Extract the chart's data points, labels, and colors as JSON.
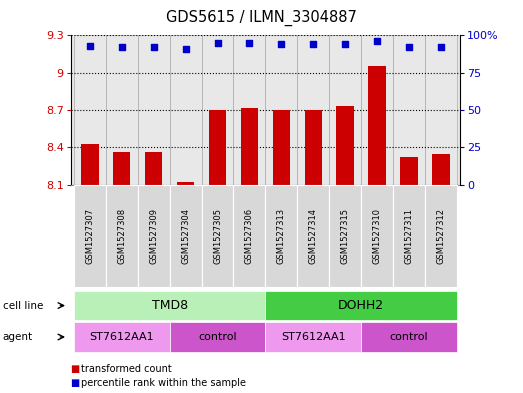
{
  "title": "GDS5615 / ILMN_3304887",
  "samples": [
    "GSM1527307",
    "GSM1527308",
    "GSM1527309",
    "GSM1527304",
    "GSM1527305",
    "GSM1527306",
    "GSM1527313",
    "GSM1527314",
    "GSM1527315",
    "GSM1527310",
    "GSM1527311",
    "GSM1527312"
  ],
  "bar_values": [
    8.43,
    8.36,
    8.36,
    8.12,
    8.7,
    8.72,
    8.7,
    8.7,
    8.73,
    9.05,
    8.32,
    8.35
  ],
  "percentile_values": [
    93,
    92,
    92,
    91,
    95,
    95,
    94,
    94,
    94,
    96,
    92,
    92
  ],
  "bar_color": "#cc0000",
  "dot_color": "#0000cc",
  "ylim_left": [
    8.1,
    9.3
  ],
  "ylim_right": [
    0,
    100
  ],
  "yticks_left": [
    8.1,
    8.4,
    8.7,
    9.0,
    9.3
  ],
  "ytick_labels_left": [
    "8.1",
    "8.4",
    "8.7",
    "9",
    "9.3"
  ],
  "yticks_right": [
    0,
    25,
    50,
    75,
    100
  ],
  "ytick_labels_right": [
    "0",
    "25",
    "50",
    "75",
    "100%"
  ],
  "cell_line_groups": [
    {
      "label": "TMD8",
      "start": 0,
      "end": 6,
      "color": "#b8f0b8"
    },
    {
      "label": "DOHH2",
      "start": 6,
      "end": 12,
      "color": "#44cc44"
    }
  ],
  "agent_groups": [
    {
      "label": "ST7612AA1",
      "start": 0,
      "end": 3,
      "color": "#ee99ee"
    },
    {
      "label": "control",
      "start": 3,
      "end": 6,
      "color": "#cc55cc"
    },
    {
      "label": "ST7612AA1",
      "start": 6,
      "end": 9,
      "color": "#ee99ee"
    },
    {
      "label": "control",
      "start": 9,
      "end": 12,
      "color": "#cc55cc"
    }
  ],
  "legend_items": [
    {
      "label": "transformed count",
      "color": "#cc0000"
    },
    {
      "label": "percentile rank within the sample",
      "color": "#0000cc"
    }
  ],
  "bar_width": 0.55,
  "plot_bg_color": "#e8e8e8",
  "grid_color": "#000000",
  "base_value": 8.1,
  "xlim": [
    -0.6,
    11.6
  ]
}
